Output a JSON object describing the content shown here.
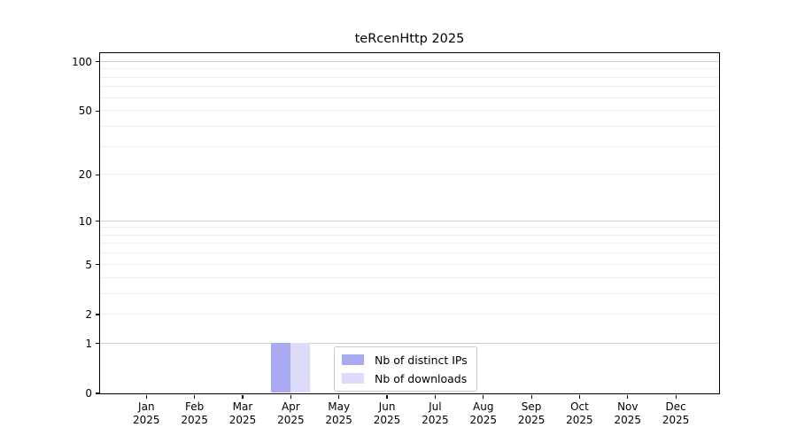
{
  "figure": {
    "background": "#ffffff"
  },
  "chart_data": {
    "type": "bar",
    "title": "teRcenHttp 2025",
    "xlabel": "",
    "ylabel": "",
    "categories": [
      "Jan",
      "Feb",
      "Mar",
      "Apr",
      "May",
      "Jun",
      "Jul",
      "Aug",
      "Sep",
      "Oct",
      "Nov",
      "Dec"
    ],
    "category_year": "2025",
    "series": [
      {
        "name": "Nb of distinct IPs",
        "color": "#aaaaf3",
        "values": [
          0,
          0,
          0,
          1,
          0,
          0,
          0,
          0,
          0,
          0,
          0,
          0
        ]
      },
      {
        "name": "Nb of downloads",
        "color": "#dcdcfa",
        "values": [
          0,
          0,
          0,
          1,
          0,
          0,
          0,
          0,
          0,
          0,
          0,
          0
        ]
      }
    ],
    "yscale": "log1p",
    "ylim": [
      0,
      113
    ],
    "ytick_values": [
      0,
      1,
      2,
      5,
      10,
      20,
      50,
      100
    ],
    "ytick_labels": [
      "0",
      "1",
      "2",
      "5",
      "10",
      "20",
      "50",
      "100"
    ],
    "grid": {
      "major_values": [
        1,
        10,
        100
      ],
      "minor_values": [
        2,
        3,
        4,
        5,
        6,
        7,
        8,
        9,
        20,
        30,
        40,
        50,
        60,
        70,
        80,
        90
      ],
      "major_color": "#cccccc",
      "minor_color": "#ededed"
    },
    "legend": {
      "position": "lower center"
    },
    "axis_color": "#000000"
  }
}
